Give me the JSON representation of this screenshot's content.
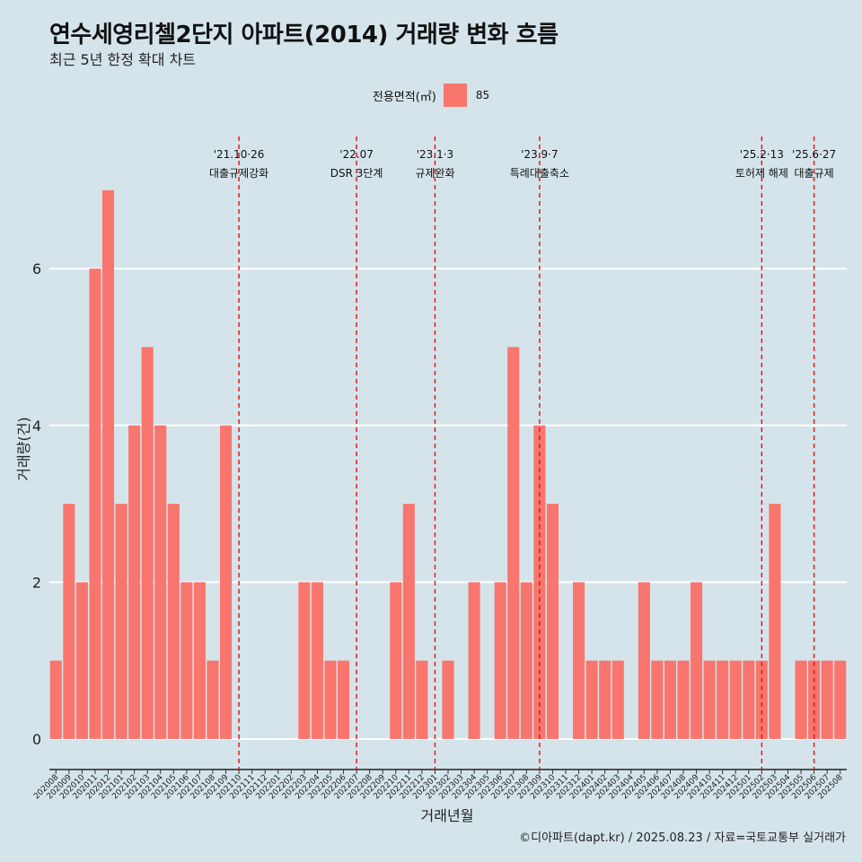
{
  "title": "연수세영리첼2단지 아파트(2014) 거래량 변화 흐름",
  "subtitle": "최근 5년 한정 확대 차트",
  "legend": {
    "title": "전용면적(㎡)",
    "items": [
      "85"
    ]
  },
  "caption": "©디아파트(dapt.kr) / 2025.08.23 / 자료=국토교통부 실거래가",
  "colors": {
    "bar": "#f8766d",
    "vline": "#e41a1c",
    "background": "#d5e4eb",
    "grid": "#ffffff"
  },
  "chart_data": {
    "type": "bar",
    "xlabel": "거래년월",
    "ylabel": "거래량(건)",
    "ylim": [
      0,
      7
    ],
    "yticks": [
      0,
      2,
      4,
      6
    ],
    "grid": true,
    "legend_position": "top",
    "categories": [
      "202008",
      "202009",
      "202010",
      "202011",
      "202012",
      "202101",
      "202102",
      "202103",
      "202104",
      "202105",
      "202106",
      "202107",
      "202108",
      "202109",
      "202110",
      "202111",
      "202112",
      "202201",
      "202202",
      "202203",
      "202204",
      "202205",
      "202206",
      "202207",
      "202208",
      "202209",
      "202210",
      "202211",
      "202212",
      "202301",
      "202302",
      "202303",
      "202304",
      "202305",
      "202306",
      "202307",
      "202308",
      "202309",
      "202310",
      "202311",
      "202312",
      "202401",
      "202402",
      "202403",
      "202404",
      "202405",
      "202406",
      "202407",
      "202408",
      "202409",
      "202410",
      "202411",
      "202412",
      "202501",
      "202502",
      "202503",
      "202504",
      "202505",
      "202506",
      "202507",
      "202508"
    ],
    "series": [
      {
        "name": "85",
        "values": [
          1,
          3,
          2,
          6,
          7,
          3,
          4,
          5,
          4,
          3,
          2,
          2,
          1,
          4,
          0,
          0,
          0,
          0,
          0,
          2,
          2,
          1,
          1,
          0,
          0,
          0,
          2,
          3,
          1,
          0,
          1,
          0,
          2,
          0,
          2,
          5,
          2,
          4,
          3,
          0,
          2,
          1,
          1,
          1,
          0,
          2,
          1,
          1,
          1,
          2,
          1,
          1,
          1,
          1,
          1,
          3,
          0,
          1,
          1,
          1,
          1
        ]
      }
    ],
    "annotations": [
      {
        "date": "'21.10·26",
        "label": "대출규제강화",
        "x": "202110"
      },
      {
        "date": "'22.07",
        "label": "DSR 3단계",
        "x": "202207"
      },
      {
        "date": "'23.1·3",
        "label": "규제완화",
        "x": "202301"
      },
      {
        "date": "'23.9·7",
        "label": "특례대출축소",
        "x": "202309"
      },
      {
        "date": "'25.2·13",
        "label": "토허제 해제",
        "x": "202502"
      },
      {
        "date": "'25.6·27",
        "label": "대출규제",
        "x": "202506"
      }
    ]
  }
}
